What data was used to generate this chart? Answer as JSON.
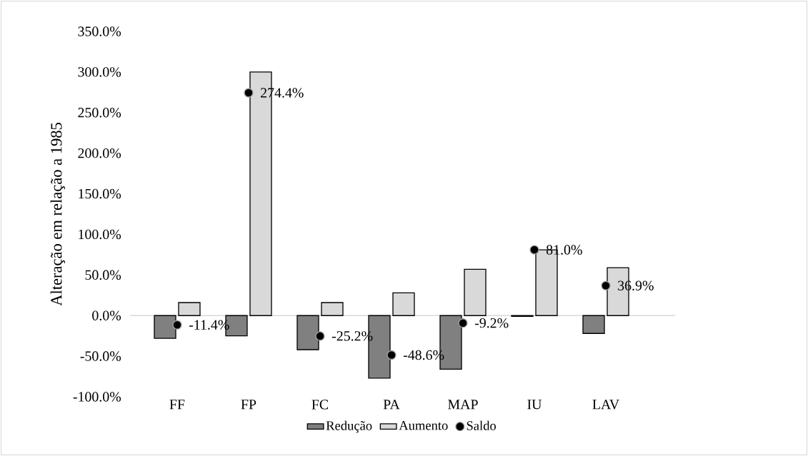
{
  "chart_data": {
    "type": "bar",
    "ylabel": "Alteração em relação a 1985",
    "categories": [
      "FF",
      "FP",
      "FC",
      "PA",
      "MAP",
      "IU",
      "LAV"
    ],
    "series": [
      {
        "name": "Redução",
        "color": "#808080",
        "values": [
          -28,
          -25,
          -42,
          -77,
          -66,
          -1,
          -22
        ]
      },
      {
        "name": "Aumento",
        "color": "#d9d9d9",
        "values": [
          16,
          300,
          16,
          28,
          57,
          81,
          59
        ]
      },
      {
        "name": "Saldo",
        "type": "scatter",
        "marker": "circle",
        "color": "#000000",
        "values": [
          -11.4,
          274.4,
          -25.2,
          -48.6,
          -9.2,
          81.0,
          36.9
        ],
        "value_labels": [
          "-11.4%",
          "274.4%",
          "-25.2%",
          "-48.6%",
          "-9.2%",
          "81.0%",
          "36.9%"
        ]
      }
    ],
    "ylim": [
      -100,
      350
    ],
    "yticks": [
      {
        "value": -100,
        "label": "-100.0%"
      },
      {
        "value": -50,
        "label": "-50.0%"
      },
      {
        "value": 0,
        "label": "0.0%"
      },
      {
        "value": 50,
        "label": "50.0%"
      },
      {
        "value": 100,
        "label": "100.0%"
      },
      {
        "value": 150,
        "label": "150.0%"
      },
      {
        "value": 200,
        "label": "200.0%"
      },
      {
        "value": 250,
        "label": "250.0%"
      },
      {
        "value": 300,
        "label": "300.0%"
      },
      {
        "value": 350,
        "label": "350.0%"
      }
    ],
    "ref_lines": [
      {
        "axis": "y",
        "value": 0,
        "color": "#d9d9d9"
      }
    ],
    "grid": false,
    "legend": "bottom"
  }
}
